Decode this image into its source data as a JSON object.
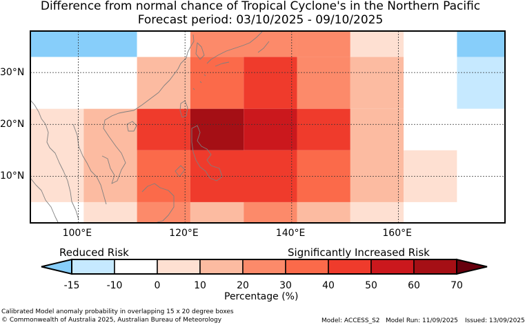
{
  "title": {
    "line1": "Difference from normal chance of Tropical Cyclone's in the Northern Pacific",
    "line2": "Forecast period: 03/10/2025 - 09/10/2025"
  },
  "map": {
    "lon_range": [
      91,
      180
    ],
    "lat_range": [
      1,
      38
    ],
    "lat_ticks": [
      {
        "value": 30,
        "label": "30°N"
      },
      {
        "value": 20,
        "label": "20°N"
      },
      {
        "value": 10,
        "label": "10°N"
      }
    ],
    "lon_ticks": [
      {
        "value": 100,
        "label": "100°E"
      },
      {
        "value": 120,
        "label": "120°E"
      },
      {
        "value": 140,
        "label": "140°E"
      },
      {
        "value": 160,
        "label": "160°E"
      }
    ],
    "grid_lines": "dotted",
    "cells": [
      {
        "lon0": 91,
        "lon1": 111,
        "lat0": 33,
        "lat1": 38,
        "color": "#87cefa"
      },
      {
        "lon0": 111,
        "lon1": 121,
        "lat0": 33,
        "lat1": 38,
        "color": "#ffffff"
      },
      {
        "lon0": 121,
        "lon1": 141,
        "lat0": 33,
        "lat1": 38,
        "color": "#fc8a6a"
      },
      {
        "lon0": 141,
        "lon1": 151,
        "lat0": 33,
        "lat1": 38,
        "color": "#fc8a6a"
      },
      {
        "lon0": 151,
        "lon1": 161,
        "lat0": 33,
        "lat1": 38,
        "color": "#fee0d2"
      },
      {
        "lon0": 161,
        "lon1": 171,
        "lat0": 33,
        "lat1": 38,
        "color": "#ffffff"
      },
      {
        "lon0": 171,
        "lon1": 180,
        "lat0": 33,
        "lat1": 38,
        "color": "#87cefa"
      },
      {
        "lon0": 91,
        "lon1": 111,
        "lat0": 23,
        "lat1": 33,
        "color": "#ffffff"
      },
      {
        "lon0": 111,
        "lon1": 121,
        "lat0": 23,
        "lat1": 33,
        "color": "#fcbba1"
      },
      {
        "lon0": 121,
        "lon1": 131,
        "lat0": 23,
        "lat1": 33,
        "color": "#fb6a4a"
      },
      {
        "lon0": 131,
        "lon1": 141,
        "lat0": 23,
        "lat1": 33,
        "color": "#ef3b2c"
      },
      {
        "lon0": 141,
        "lon1": 151,
        "lat0": 23,
        "lat1": 33,
        "color": "#fc8a6a"
      },
      {
        "lon0": 151,
        "lon1": 161,
        "lat0": 23,
        "lat1": 33,
        "color": "#fcbba1"
      },
      {
        "lon0": 161,
        "lon1": 171,
        "lat0": 23,
        "lat1": 33,
        "color": "#ffffff"
      },
      {
        "lon0": 171,
        "lon1": 180,
        "lat0": 23,
        "lat1": 33,
        "color": "#c6e9ff"
      },
      {
        "lon0": 91,
        "lon1": 101,
        "lat0": 5,
        "lat1": 23,
        "color": "#fee0d2"
      },
      {
        "lon0": 101,
        "lon1": 111,
        "lat0": 5,
        "lat1": 23,
        "color": "#fcbba1"
      },
      {
        "lon0": 111,
        "lon1": 121,
        "lat0": 15,
        "lat1": 23,
        "color": "#ef3b2c"
      },
      {
        "lon0": 121,
        "lon1": 131,
        "lat0": 15,
        "lat1": 23,
        "color": "#a50f15"
      },
      {
        "lon0": 131,
        "lon1": 141,
        "lat0": 15,
        "lat1": 23,
        "color": "#cb181d"
      },
      {
        "lon0": 141,
        "lon1": 151,
        "lat0": 15,
        "lat1": 23,
        "color": "#ef3b2c"
      },
      {
        "lon0": 151,
        "lon1": 161,
        "lat0": 5,
        "lat1": 23,
        "color": "#fcbba1"
      },
      {
        "lon0": 161,
        "lon1": 180,
        "lat0": 15,
        "lat1": 23,
        "color": "#ffffff"
      },
      {
        "lon0": 111,
        "lon1": 121,
        "lat0": 5,
        "lat1": 15,
        "color": "#fb6a4a"
      },
      {
        "lon0": 121,
        "lon1": 141,
        "lat0": 5,
        "lat1": 15,
        "color": "#ef3b2c"
      },
      {
        "lon0": 141,
        "lon1": 151,
        "lat0": 5,
        "lat1": 15,
        "color": "#fb6a4a"
      },
      {
        "lon0": 161,
        "lon1": 171,
        "lat0": 5,
        "lat1": 15,
        "color": "#fee0d2"
      },
      {
        "lon0": 171,
        "lon1": 180,
        "lat0": 5,
        "lat1": 15,
        "color": "#ffffff"
      },
      {
        "lon0": 91,
        "lon1": 101,
        "lat0": 1,
        "lat1": 5,
        "color": "#ffffff"
      },
      {
        "lon0": 101,
        "lon1": 111,
        "lat0": 1,
        "lat1": 5,
        "color": "#fee0d2"
      },
      {
        "lon0": 111,
        "lon1": 121,
        "lat0": 1,
        "lat1": 5,
        "color": "#fc8a6a"
      },
      {
        "lon0": 121,
        "lon1": 131,
        "lat0": 1,
        "lat1": 5,
        "color": "#fcbba1"
      },
      {
        "lon0": 131,
        "lon1": 141,
        "lat0": 1,
        "lat1": 5,
        "color": "#fc8a6a"
      },
      {
        "lon0": 141,
        "lon1": 151,
        "lat0": 1,
        "lat1": 5,
        "color": "#fcbba1"
      },
      {
        "lon0": 151,
        "lon1": 161,
        "lat0": 1,
        "lat1": 5,
        "color": "#fee0d2"
      },
      {
        "lon0": 161,
        "lon1": 180,
        "lat0": 1,
        "lat1": 5,
        "color": "#ffffff"
      }
    ]
  },
  "colorbar": {
    "reduced_label": "Reduced Risk",
    "increased_label": "Significantly Increased Risk",
    "xlabel": "Percentage (%)",
    "ticks": [
      "-15",
      "-10",
      "0",
      "10",
      "20",
      "30",
      "40",
      "50",
      "60",
      "70"
    ],
    "low_extend_color": "#87cefa",
    "high_extend_color": "#67000d",
    "colors": [
      "#c6e9ff",
      "#ffffff",
      "#fee0d2",
      "#fcbba1",
      "#fc8a6a",
      "#fb6a4a",
      "#ef3b2c",
      "#cb181d",
      "#a50f15"
    ]
  },
  "footer": {
    "caption": "Calibrated Model anomaly probability in overlapping 15 x 20 degree boxes",
    "copyright": "© Commonwealth of Australia 2025, Australian Bureau of Meteorology",
    "model": "Model: ACCESS_S2",
    "model_run": "Model Run: 11/09/2025",
    "issued": "Issued: 13/09/2025"
  }
}
